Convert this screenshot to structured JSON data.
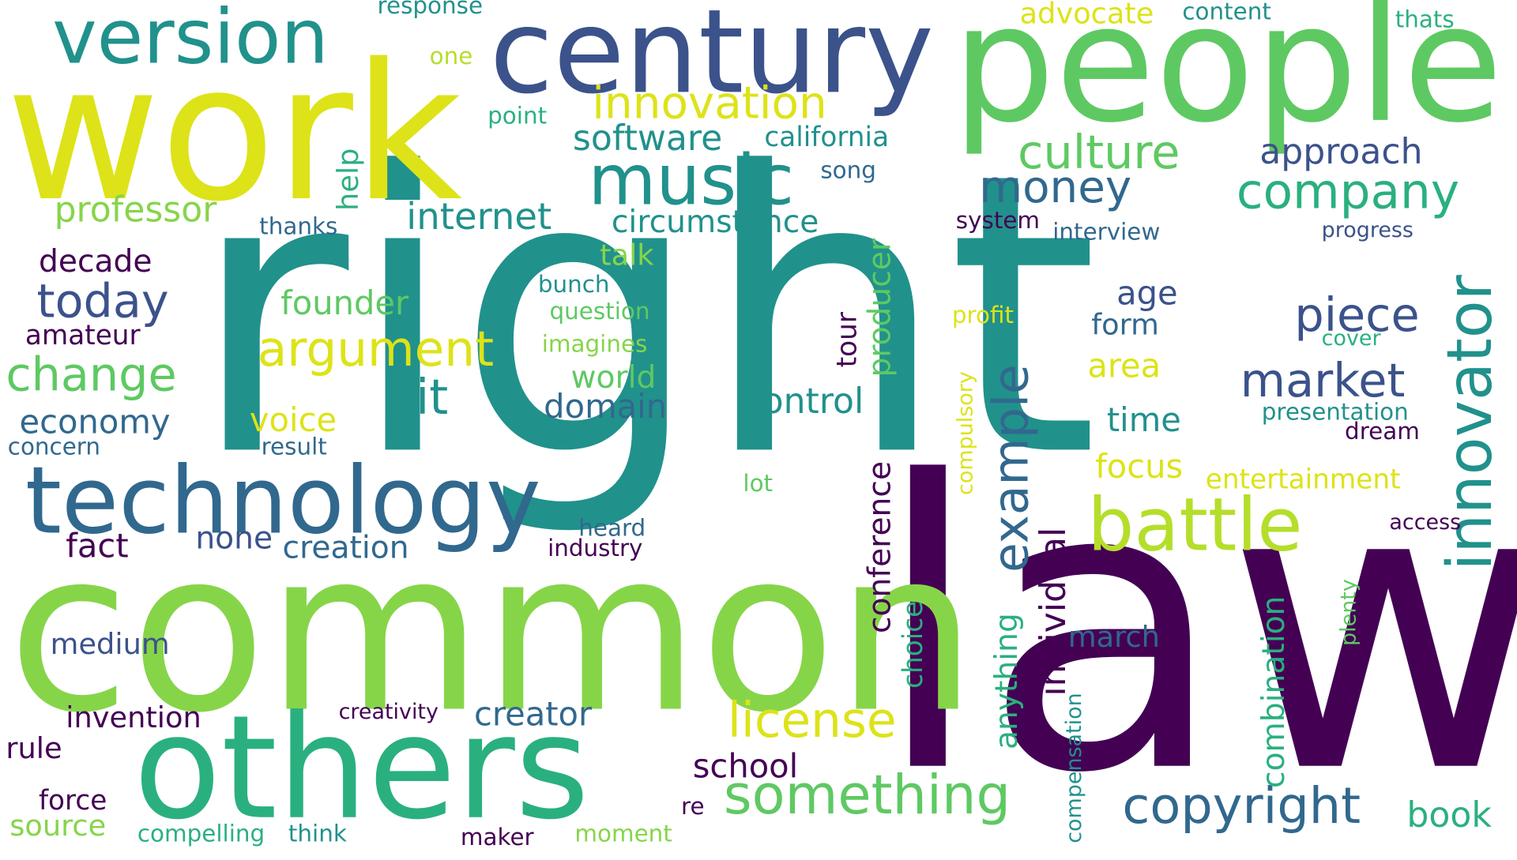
{
  "palette": {
    "background": "#ffffff",
    "dark_purple": "#440154",
    "indigo": "#3b528b",
    "blue": "#31688e",
    "teal": "#21918c",
    "green_teal": "#2ab07f",
    "green": "#5ec962",
    "lime": "#86d549",
    "light_lime": "#b5de2b",
    "yellow": "#dde318"
  },
  "words": {
    "right": "right",
    "law": "law",
    "common": "common",
    "work": "work",
    "people": "people",
    "century": "century",
    "others": "others",
    "technology": "technology",
    "music": "music",
    "innovator": "innovator",
    "version": "version",
    "battle": "battle",
    "something": "something",
    "copyright": "copyright",
    "innovation": "innovation",
    "culture": "culture",
    "company": "company",
    "money": "money",
    "argument": "argument",
    "license": "license",
    "change": "change",
    "today": "today",
    "example": "example",
    "market": "market",
    "piece": "piece",
    "bit": "bit",
    "internet": "internet",
    "software": "software",
    "approach": "approach",
    "professor": "professor",
    "individual": "individual",
    "combination": "combination",
    "anything": "anything",
    "conference": "conference",
    "producer": "producer",
    "control": "control",
    "creator": "creator",
    "school": "school",
    "founder": "founder",
    "economy": "economy",
    "decade": "decade",
    "domain": "domain",
    "world": "world",
    "circumstance": "circumstance",
    "entertainment": "entertainment",
    "california": "california",
    "creation": "creation",
    "none": "none",
    "fact": "fact",
    "medium": "medium",
    "invention": "invention",
    "rule": "rule",
    "force": "force",
    "source": "source",
    "book": "book",
    "time": "time",
    "focus": "focus",
    "area": "area",
    "age": "age",
    "form": "form",
    "voice": "voice",
    "march": "march",
    "advocate": "advocate",
    "choice": "choice",
    "help": "help",
    "talk": "talk",
    "amateur": "amateur",
    "tour": "tour",
    "presentation": "presentation",
    "progress": "progress",
    "interview": "interview",
    "system": "system",
    "content": "content",
    "thats": "thats",
    "response": "response",
    "one": "one",
    "point": "point",
    "song": "song",
    "thanks": "thanks",
    "bunch": "bunch",
    "question": "question",
    "imagines": "imagines",
    "profit": "profit",
    "cover": "cover",
    "dream": "dream",
    "compulsory": "compulsory",
    "concern": "concern",
    "result": "result",
    "lot": "lot",
    "heard": "heard",
    "industry": "industry",
    "access": "access",
    "plenty": "plenty",
    "creativity": "creativity",
    "compensation": "compensation",
    "compelling": "compelling",
    "think": "think",
    "maker": "maker",
    "moment": "moment",
    "re": "re"
  }
}
